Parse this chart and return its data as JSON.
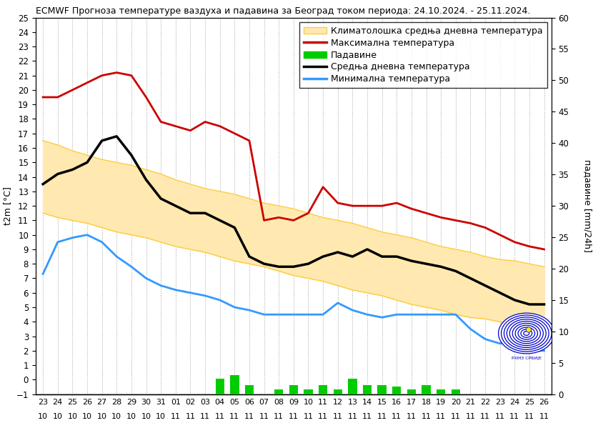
{
  "title": "ECMWF Прогноза температуре ваздуха и падавина за Београд током периода: 24.10.2024. - 25.11.2024.",
  "xlabel_top": [
    "23",
    "24",
    "25",
    "26",
    "27",
    "28",
    "29",
    "30",
    "31",
    "01",
    "02",
    "03",
    "04",
    "05",
    "06",
    "07",
    "08",
    "09",
    "10",
    "11",
    "12",
    "13",
    "14",
    "15",
    "16",
    "17",
    "18",
    "19",
    "20",
    "21",
    "22",
    "23",
    "24",
    "25",
    "26"
  ],
  "xlabel_bot": [
    "10",
    "10",
    "10",
    "10",
    "10",
    "10",
    "10",
    "10",
    "10",
    "11",
    "11",
    "11",
    "11",
    "11",
    "11",
    "11",
    "11",
    "11",
    "11",
    "11",
    "11",
    "11",
    "11",
    "11",
    "11",
    "11",
    "11",
    "11",
    "11",
    "11",
    "11",
    "11",
    "11",
    "11",
    "11"
  ],
  "ylabel_left": "t2m [°C]",
  "ylabel_right": "падавине [mm/24h]",
  "ylim_left": [
    -1,
    25
  ],
  "ylim_right": [
    0,
    60
  ],
  "legend_labels": [
    "Климатолошка средња дневна температура",
    "Максимална температура",
    "Падавине",
    "Средња дневна температура",
    "Минимална температура"
  ],
  "x": [
    0,
    1,
    2,
    3,
    4,
    5,
    6,
    7,
    8,
    9,
    10,
    11,
    12,
    13,
    14,
    15,
    16,
    17,
    18,
    19,
    20,
    21,
    22,
    23,
    24,
    25,
    26,
    27,
    28,
    29,
    30,
    31,
    32,
    33,
    34
  ],
  "max_temp": [
    19.5,
    19.5,
    20.0,
    20.5,
    21.0,
    21.2,
    21.0,
    19.5,
    17.8,
    17.5,
    17.2,
    17.8,
    17.5,
    17.0,
    16.5,
    11.0,
    11.2,
    11.0,
    11.5,
    13.3,
    12.2,
    12.0,
    12.0,
    12.0,
    12.2,
    11.8,
    11.5,
    11.2,
    11.0,
    10.8,
    10.5,
    10.0,
    9.5,
    9.2,
    9.0
  ],
  "min_temp": [
    7.3,
    9.5,
    9.8,
    10.0,
    9.5,
    8.5,
    7.8,
    7.0,
    6.5,
    6.2,
    6.0,
    5.8,
    5.5,
    5.0,
    4.8,
    4.5,
    4.5,
    4.5,
    4.5,
    4.5,
    5.3,
    4.8,
    4.5,
    4.3,
    4.5,
    4.5,
    4.5,
    4.5,
    4.5,
    3.5,
    2.8,
    2.5,
    2.5,
    2.0,
    2.0
  ],
  "mean_temp": [
    13.5,
    14.2,
    14.5,
    15.0,
    16.5,
    16.8,
    15.5,
    13.8,
    12.5,
    12.0,
    11.5,
    11.5,
    11.0,
    10.5,
    8.5,
    8.0,
    7.8,
    7.8,
    8.0,
    8.5,
    8.8,
    8.5,
    9.0,
    8.5,
    8.5,
    8.2,
    8.0,
    7.8,
    7.5,
    7.0,
    6.5,
    6.0,
    5.5,
    5.2,
    5.2
  ],
  "clim_upper": [
    16.5,
    16.2,
    15.8,
    15.5,
    15.2,
    15.0,
    14.8,
    14.5,
    14.2,
    13.8,
    13.5,
    13.2,
    13.0,
    12.8,
    12.5,
    12.2,
    12.0,
    11.8,
    11.5,
    11.2,
    11.0,
    10.8,
    10.5,
    10.2,
    10.0,
    9.8,
    9.5,
    9.2,
    9.0,
    8.8,
    8.5,
    8.3,
    8.2,
    8.0,
    7.8
  ],
  "clim_lower": [
    11.5,
    11.2,
    11.0,
    10.8,
    10.5,
    10.2,
    10.0,
    9.8,
    9.5,
    9.2,
    9.0,
    8.8,
    8.5,
    8.2,
    8.0,
    7.8,
    7.5,
    7.2,
    7.0,
    6.8,
    6.5,
    6.2,
    6.0,
    5.8,
    5.5,
    5.2,
    5.0,
    4.8,
    4.5,
    4.3,
    4.2,
    4.0,
    3.8,
    3.8,
    3.8
  ],
  "precipitation_mm": [
    0,
    0,
    0,
    0,
    0,
    0,
    0,
    0,
    0,
    0,
    0,
    0,
    2.5,
    3.0,
    1.5,
    0,
    0.8,
    1.5,
    0.8,
    1.5,
    0.8,
    2.5,
    1.5,
    1.5,
    1.2,
    0.8,
    1.5,
    0.8,
    0.8,
    0,
    0,
    0,
    0,
    0,
    0
  ],
  "bg_color": "#ffffff",
  "grid_color": "#aaaaaa",
  "clim_fill_color": "#ffe9b0",
  "clim_line_color": "#ffcc44",
  "max_temp_color": "#cc0000",
  "min_temp_color": "#3399ff",
  "mean_temp_color": "#000000",
  "precip_color": "#00cc00",
  "logo_color": "#0000cc",
  "logo_fill": "#ffffff",
  "logo_star": "#ffee00",
  "title_fontsize": 9,
  "label_fontsize": 9,
  "tick_fontsize": 8.5
}
